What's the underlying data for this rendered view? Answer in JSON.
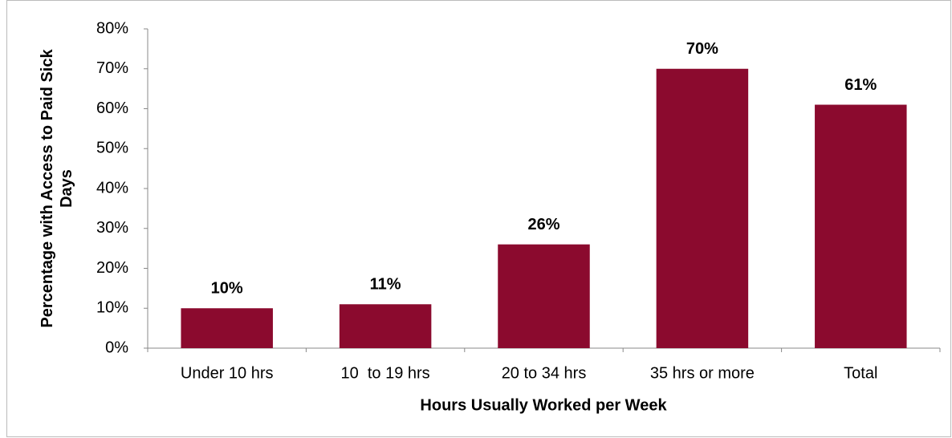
{
  "chart_data": {
    "type": "bar",
    "x_label": "Hours Usually Worked per Week",
    "y_label": "Percentage with Access to Paid Sick Days",
    "categories": [
      "Under 10 hrs",
      "10  to 19 hrs",
      "20 to 34 hrs",
      "35 hrs or more",
      "Total"
    ],
    "values": [
      10,
      11,
      26,
      70,
      61
    ],
    "value_labels": [
      "10%",
      "11%",
      "26%",
      "70%",
      "61%"
    ],
    "color": "#8b0a2e",
    "ylim": [
      0,
      80
    ],
    "yticks": [
      {
        "value": 0,
        "label": "0%"
      },
      {
        "value": 10,
        "label": "10%"
      },
      {
        "value": 20,
        "label": "20%"
      },
      {
        "value": 30,
        "label": "30%"
      },
      {
        "value": 40,
        "label": "40%"
      },
      {
        "value": 50,
        "label": "50%"
      },
      {
        "value": 60,
        "label": "60%"
      },
      {
        "value": 70,
        "label": "70%"
      },
      {
        "value": 80,
        "label": "80%"
      }
    ],
    "grid": false
  }
}
